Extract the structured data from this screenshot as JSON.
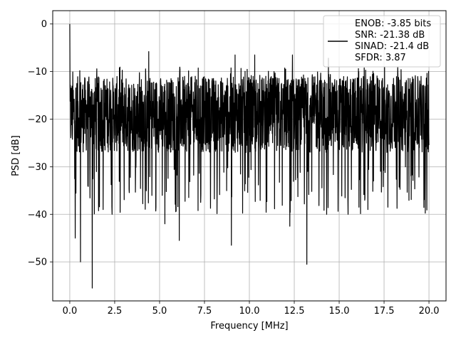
{
  "chart_data": {
    "type": "line",
    "xlabel": "Frequency [MHz]",
    "ylabel": "PSD [dB]",
    "xlim": [
      -0.95,
      20.95
    ],
    "ylim": [
      -58.2,
      2.8
    ],
    "x_ticks": [
      0.0,
      2.5,
      5.0,
      7.5,
      10.0,
      12.5,
      15.0,
      17.5,
      20.0
    ],
    "x_tick_labels": [
      "0.0",
      "2.5",
      "5.0",
      "7.5",
      "10.0",
      "12.5",
      "15.0",
      "17.5",
      "20.0"
    ],
    "y_ticks": [
      0,
      -10,
      -20,
      -30,
      -40,
      -50
    ],
    "y_tick_labels": [
      "0",
      "−10",
      "−20",
      "−30",
      "−40",
      "−50"
    ],
    "grid": true,
    "legend_position": "top-right",
    "legend": [
      "ENOB: -3.85 bits",
      "SNR: -21.38 dB",
      "SINAD: -21.4 dB",
      "SFDR: 3.87"
    ],
    "series": [
      {
        "color": "#000000",
        "x_start": 0.0,
        "x_end": 20.0,
        "points": 2048,
        "noise_mean": -19.5,
        "noise_low": -27,
        "noise_high": -11,
        "peak": [
          0.0,
          0.0
        ],
        "dips": [
          [
            0.3,
            -45
          ],
          [
            0.6,
            -50
          ],
          [
            1.25,
            -55.5
          ],
          [
            2.35,
            -40
          ],
          [
            4.4,
            -41
          ],
          [
            5.3,
            -42
          ],
          [
            6.1,
            -45.5
          ],
          [
            9.0,
            -46.5
          ],
          [
            12.25,
            -42.5
          ],
          [
            13.2,
            -50.5
          ],
          [
            14.3,
            -40
          ],
          [
            15.5,
            -40
          ],
          [
            16.1,
            -38.5
          ],
          [
            16.6,
            -39
          ]
        ],
        "spikes": [
          [
            4.4,
            -5.8
          ],
          [
            9.2,
            -6.5
          ],
          [
            10.3,
            -6.5
          ],
          [
            12.4,
            -6.5
          ],
          [
            14.4,
            -7.2
          ]
        ]
      }
    ]
  }
}
